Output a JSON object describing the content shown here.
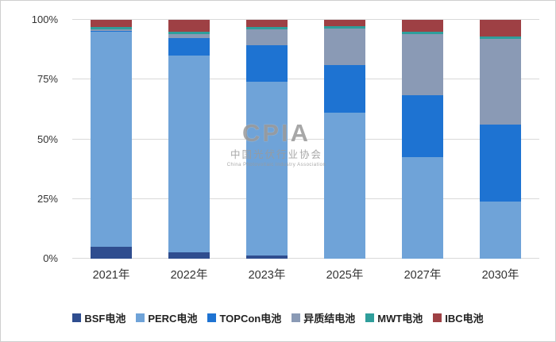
{
  "chart_data": {
    "type": "bar",
    "stacked": true,
    "title": "",
    "categories": [
      "2021年",
      "2022年",
      "2023年",
      "2025年",
      "2027年",
      "2030年"
    ],
    "series": [
      {
        "name": "BSF电池",
        "color": "#2f4d8f",
        "values": [
          5,
          2.5,
          1.5,
          0,
          0,
          0
        ]
      },
      {
        "name": "PERC电池",
        "color": "#6fa3d8",
        "values": [
          90,
          82.5,
          72.5,
          61,
          42.5,
          24
        ]
      },
      {
        "name": "TOPCon电池",
        "color": "#1e73d2",
        "values": [
          0.5,
          7.5,
          15.5,
          20,
          26,
          32
        ]
      },
      {
        "name": "异质结电池",
        "color": "#8a9ab5",
        "values": [
          0.5,
          1.5,
          6.5,
          15.5,
          25.5,
          36
        ]
      },
      {
        "name": "MWT电池",
        "color": "#2f9e9b",
        "values": [
          1,
          1,
          1,
          1,
          1,
          1
        ]
      },
      {
        "name": "IBC电池",
        "color": "#9e4044",
        "values": [
          3,
          5,
          3,
          2.5,
          5,
          7
        ]
      }
    ],
    "y_ticks": [
      "0%",
      "25%",
      "50%",
      "75%",
      "100%"
    ],
    "ylim": [
      0,
      100
    ],
    "grid": true,
    "legend_position": "bottom"
  },
  "watermark": {
    "logo_text": "CPIA",
    "org_name": "中国光伏行业协会",
    "org_name_en": "China Photovoltaic Industry Association"
  }
}
